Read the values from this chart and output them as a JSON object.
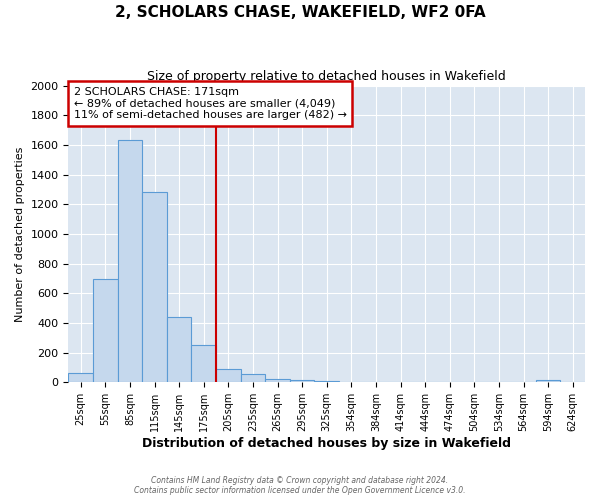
{
  "title": "2, SCHOLARS CHASE, WAKEFIELD, WF2 0FA",
  "subtitle": "Size of property relative to detached houses in Wakefield",
  "xlabel": "Distribution of detached houses by size in Wakefield",
  "ylabel": "Number of detached properties",
  "bar_labels": [
    "25sqm",
    "55sqm",
    "85sqm",
    "115sqm",
    "145sqm",
    "175sqm",
    "205sqm",
    "235sqm",
    "265sqm",
    "295sqm",
    "325sqm",
    "354sqm",
    "384sqm",
    "414sqm",
    "444sqm",
    "474sqm",
    "504sqm",
    "534sqm",
    "564sqm",
    "594sqm",
    "624sqm"
  ],
  "bar_values": [
    65,
    695,
    1635,
    1280,
    440,
    250,
    90,
    55,
    25,
    18,
    12,
    0,
    0,
    0,
    0,
    0,
    0,
    0,
    0,
    13,
    0
  ],
  "bar_color": "#c5d8ed",
  "bar_edge_color": "#5b9bd5",
  "background_color": "#dce6f1",
  "fig_background": "#ffffff",
  "ylim": [
    0,
    2000
  ],
  "yticks": [
    0,
    200,
    400,
    600,
    800,
    1000,
    1200,
    1400,
    1600,
    1800,
    2000
  ],
  "vline_color": "#cc0000",
  "vline_index": 5,
  "annotation_title": "2 SCHOLARS CHASE: 171sqm",
  "annotation_line1": "← 89% of detached houses are smaller (4,049)",
  "annotation_line2": "11% of semi-detached houses are larger (482) →",
  "annotation_box_color": "#ffffff",
  "annotation_box_edge": "#cc0000",
  "footer_line1": "Contains HM Land Registry data © Crown copyright and database right 2024.",
  "footer_line2": "Contains public sector information licensed under the Open Government Licence v3.0."
}
